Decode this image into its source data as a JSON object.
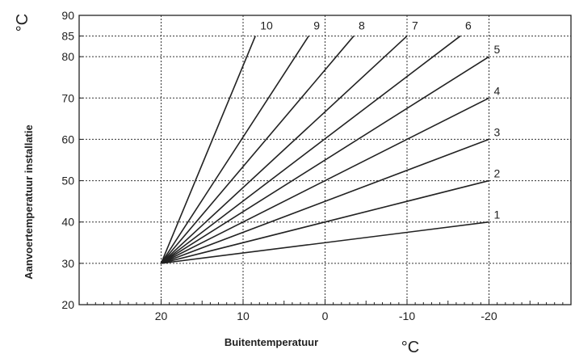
{
  "chart_data": {
    "type": "line",
    "title": "",
    "xlabel": "Buitentemperatuur",
    "ylabel": "Aanvoertemperatuur installatie",
    "x_unit": "°C",
    "y_unit": "°C",
    "x_reversed": true,
    "xlim": [
      30,
      -30
    ],
    "ylim": [
      20,
      90
    ],
    "x_ticks": [
      "20",
      "10",
      "0",
      "-10",
      "-20"
    ],
    "x_tick_values": [
      20,
      10,
      0,
      -10,
      -20
    ],
    "y_ticks": [
      "20",
      "30",
      "40",
      "50",
      "60",
      "70",
      "80",
      "85",
      "90"
    ],
    "y_tick_values": [
      20,
      30,
      40,
      50,
      60,
      70,
      80,
      85,
      90
    ],
    "grid": true,
    "origin": {
      "x": 20,
      "y": 30
    },
    "series": [
      {
        "name": "1",
        "x": [
          20,
          -20
        ],
        "y": [
          30,
          40
        ]
      },
      {
        "name": "2",
        "x": [
          20,
          -20
        ],
        "y": [
          30,
          50
        ]
      },
      {
        "name": "3",
        "x": [
          20,
          -20
        ],
        "y": [
          30,
          60
        ]
      },
      {
        "name": "4",
        "x": [
          20,
          -20
        ],
        "y": [
          30,
          70
        ]
      },
      {
        "name": "5",
        "x": [
          20,
          -20
        ],
        "y": [
          30,
          80
        ]
      },
      {
        "name": "6",
        "x": [
          20,
          -16.5
        ],
        "y": [
          30,
          85
        ]
      },
      {
        "name": "7",
        "x": [
          20,
          -10
        ],
        "y": [
          30,
          85
        ]
      },
      {
        "name": "8",
        "x": [
          20,
          -3.5
        ],
        "y": [
          30,
          85
        ]
      },
      {
        "name": "9",
        "x": [
          20,
          2
        ],
        "y": [
          30,
          85
        ]
      },
      {
        "name": "10",
        "x": [
          20,
          8.5
        ],
        "y": [
          30,
          85
        ]
      }
    ]
  }
}
